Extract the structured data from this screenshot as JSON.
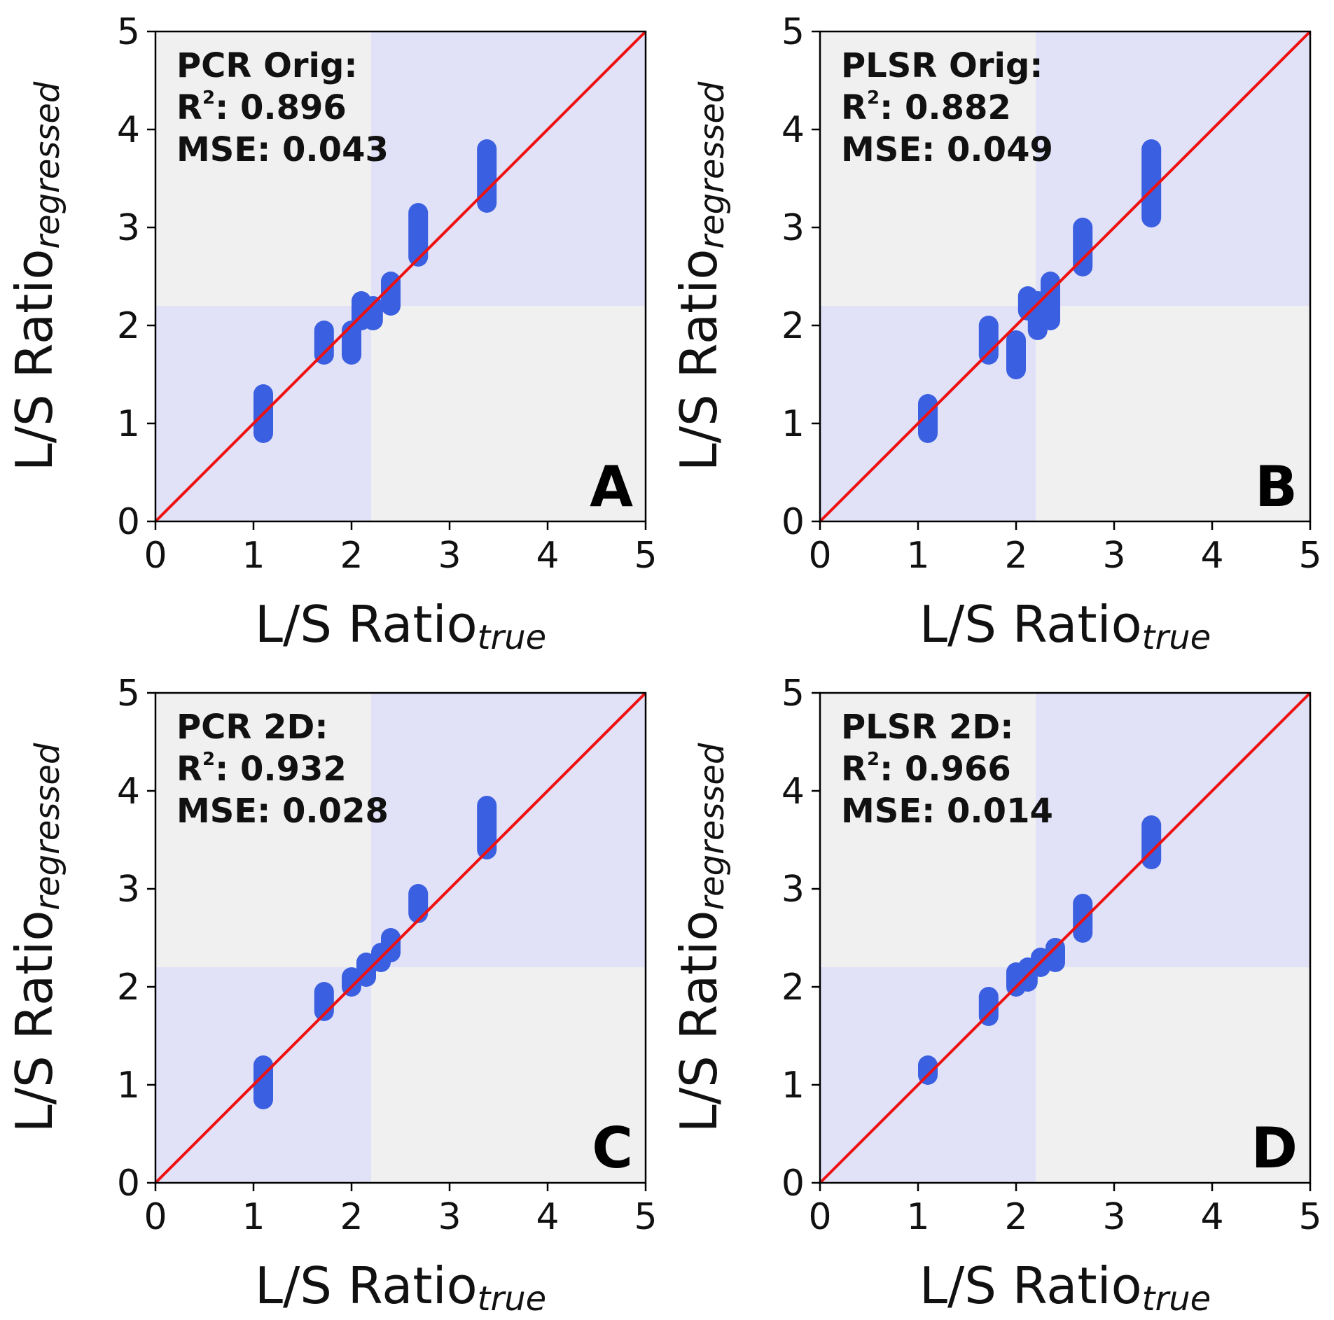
{
  "chart_data": [
    {
      "type": "scatter",
      "panel": "A",
      "label_lines": [
        "PCR Orig:",
        "R",
        ": 0.896",
        "MSE: 0.043"
      ],
      "title_line": "PCR Orig:",
      "r2_prefix": "R",
      "r2_sup": "2",
      "r2_value": ": 0.896",
      "mse_line": "MSE: 0.043",
      "xlabel": "L/S Ratio",
      "xlabel_sub": "true",
      "ylabel": "L/S Ratio",
      "ylabel_sub": "regressed",
      "xlim": [
        0,
        5
      ],
      "ylim": [
        0,
        5
      ],
      "xticks": [
        "0",
        "1",
        "2",
        "3",
        "4",
        "5"
      ],
      "yticks": [
        "0",
        "1",
        "2",
        "3",
        "4",
        "5"
      ],
      "threshold": 2.2,
      "identity_line": true,
      "groups": [
        {
          "x": 1.1,
          "y_min": 0.9,
          "y_max": 1.3
        },
        {
          "x": 1.72,
          "y_min": 1.7,
          "y_max": 1.95
        },
        {
          "x": 2.0,
          "y_min": 1.7,
          "y_max": 1.95
        },
        {
          "x": 2.1,
          "y_min": 2.05,
          "y_max": 2.25
        },
        {
          "x": 2.22,
          "y_min": 2.05,
          "y_max": 2.2
        },
        {
          "x": 2.4,
          "y_min": 2.2,
          "y_max": 2.45
        },
        {
          "x": 2.68,
          "y_min": 2.7,
          "y_max": 3.15
        },
        {
          "x": 3.38,
          "y_min": 3.25,
          "y_max": 3.8
        }
      ]
    },
    {
      "type": "scatter",
      "panel": "B",
      "title_line": "PLSR Orig:",
      "r2_prefix": "R",
      "r2_sup": "2",
      "r2_value": ": 0.882",
      "mse_line": "MSE: 0.049",
      "xlabel": "L/S Ratio",
      "xlabel_sub": "true",
      "ylabel": "L/S Ratio",
      "ylabel_sub": "regressed",
      "xlim": [
        0,
        5
      ],
      "ylim": [
        0,
        5
      ],
      "xticks": [
        "0",
        "1",
        "2",
        "3",
        "4",
        "5"
      ],
      "yticks": [
        "0",
        "1",
        "2",
        "3",
        "4",
        "5"
      ],
      "threshold": 2.2,
      "identity_line": true,
      "groups": [
        {
          "x": 1.1,
          "y_min": 0.9,
          "y_max": 1.2
        },
        {
          "x": 1.72,
          "y_min": 1.7,
          "y_max": 2.0
        },
        {
          "x": 2.0,
          "y_min": 1.55,
          "y_max": 1.85
        },
        {
          "x": 2.12,
          "y_min": 2.15,
          "y_max": 2.3
        },
        {
          "x": 2.22,
          "y_min": 1.95,
          "y_max": 2.25
        },
        {
          "x": 2.35,
          "y_min": 2.05,
          "y_max": 2.45
        },
        {
          "x": 2.68,
          "y_min": 2.6,
          "y_max": 3.0
        },
        {
          "x": 3.38,
          "y_min": 3.1,
          "y_max": 3.8
        }
      ]
    },
    {
      "type": "scatter",
      "panel": "C",
      "title_line": "PCR 2D:",
      "r2_prefix": "R",
      "r2_sup": "2",
      "r2_value": ": 0.932",
      "mse_line": "MSE: 0.028",
      "xlabel": "L/S Ratio",
      "xlabel_sub": "true",
      "ylabel": "L/S Ratio",
      "ylabel_sub": "regressed",
      "xlim": [
        0,
        5
      ],
      "ylim": [
        0,
        5
      ],
      "xticks": [
        "0",
        "1",
        "2",
        "3",
        "4",
        "5"
      ],
      "yticks": [
        "0",
        "1",
        "2",
        "3",
        "4",
        "5"
      ],
      "threshold": 2.2,
      "identity_line": true,
      "groups": [
        {
          "x": 1.1,
          "y_min": 0.85,
          "y_max": 1.2
        },
        {
          "x": 1.72,
          "y_min": 1.75,
          "y_max": 1.95
        },
        {
          "x": 2.0,
          "y_min": 2.0,
          "y_max": 2.1
        },
        {
          "x": 2.15,
          "y_min": 2.1,
          "y_max": 2.25
        },
        {
          "x": 2.3,
          "y_min": 2.25,
          "y_max": 2.35
        },
        {
          "x": 2.4,
          "y_min": 2.35,
          "y_max": 2.5
        },
        {
          "x": 2.68,
          "y_min": 2.75,
          "y_max": 2.95
        },
        {
          "x": 3.38,
          "y_min": 3.4,
          "y_max": 3.85
        }
      ]
    },
    {
      "type": "scatter",
      "panel": "D",
      "title_line": "PLSR 2D:",
      "r2_prefix": "R",
      "r2_sup": "2",
      "r2_value": ": 0.966",
      "mse_line": "MSE: 0.014",
      "xlabel": "L/S Ratio",
      "xlabel_sub": "true",
      "ylabel": "L/S Ratio",
      "ylabel_sub": "regressed",
      "xlim": [
        0,
        5
      ],
      "ylim": [
        0,
        5
      ],
      "xticks": [
        "0",
        "1",
        "2",
        "3",
        "4",
        "5"
      ],
      "yticks": [
        "0",
        "1",
        "2",
        "3",
        "4",
        "5"
      ],
      "threshold": 2.2,
      "identity_line": true,
      "groups": [
        {
          "x": 1.1,
          "y_min": 1.1,
          "y_max": 1.2
        },
        {
          "x": 1.72,
          "y_min": 1.7,
          "y_max": 1.9
        },
        {
          "x": 2.0,
          "y_min": 2.0,
          "y_max": 2.15
        },
        {
          "x": 2.12,
          "y_min": 2.05,
          "y_max": 2.2
        },
        {
          "x": 2.25,
          "y_min": 2.2,
          "y_max": 2.3
        },
        {
          "x": 2.4,
          "y_min": 2.25,
          "y_max": 2.4
        },
        {
          "x": 2.68,
          "y_min": 2.55,
          "y_max": 2.85
        },
        {
          "x": 3.38,
          "y_min": 3.3,
          "y_max": 3.65
        }
      ]
    }
  ],
  "colors": {
    "quadrant_match": "#e1e1f8",
    "quadrant_mismatch": "#f0f0f0",
    "points": "#3a5fe0",
    "identity_line": "#ee1111",
    "axis": "#000000"
  }
}
